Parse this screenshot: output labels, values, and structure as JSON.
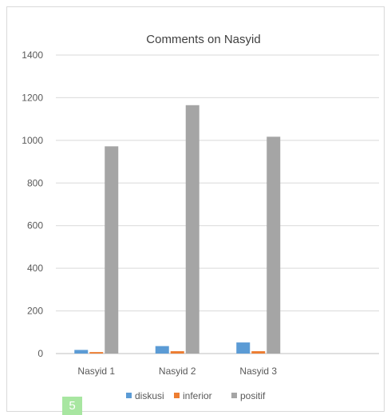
{
  "chart_data": {
    "type": "bar",
    "title": "Comments on Nasyid",
    "categories": [
      "Nasyid 1",
      "Nasyid 2",
      "Nasyid 3"
    ],
    "series": [
      {
        "name": "diskusi",
        "color": "#5b9bd5",
        "values": [
          17,
          35,
          52
        ]
      },
      {
        "name": "inferior",
        "color": "#ed7d31",
        "values": [
          7,
          11,
          11
        ]
      },
      {
        "name": "positif",
        "color": "#a5a5a5",
        "values": [
          972,
          1165,
          1017
        ]
      }
    ],
    "ylim": [
      0,
      1400
    ],
    "yticks": [
      0,
      200,
      400,
      600,
      800,
      1000,
      1200,
      1400
    ],
    "grid": true,
    "legend_position": "bottom"
  },
  "badge": {
    "label": "5",
    "color": "#a8e6a1"
  }
}
